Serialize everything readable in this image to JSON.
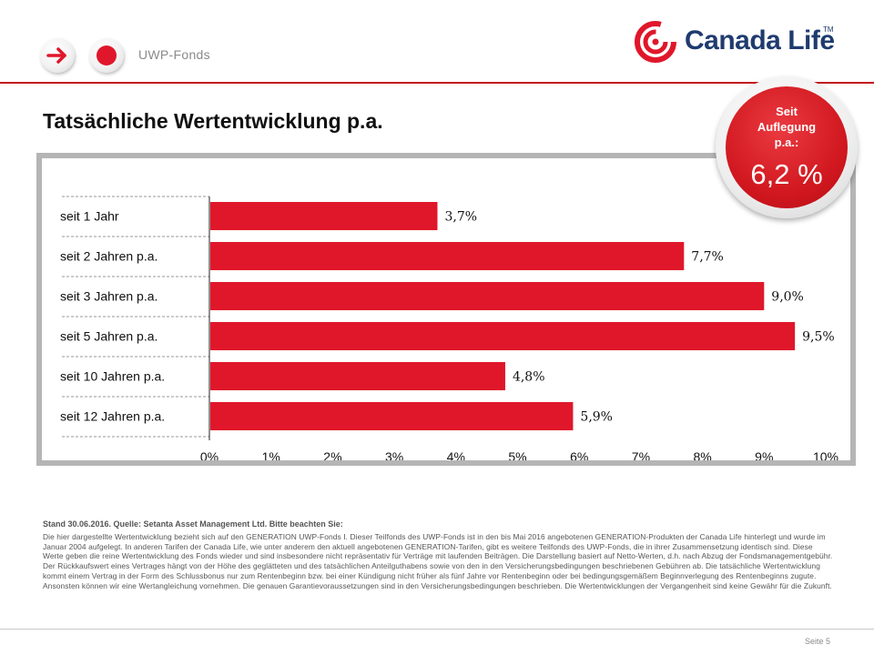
{
  "header": {
    "section_label": "UWP-Fonds",
    "logo_text": "Canada Life",
    "logo_tm": "TM"
  },
  "page_title": "Tatsächliche Wertentwicklung p.a.",
  "badge": {
    "caption": "Seit\nAuflegung\np.a.:",
    "value": "6,2 %"
  },
  "colors": {
    "brand_red": "#e0172a",
    "bar_red": "#e0172a",
    "logo_blue": "#1f3b6f"
  },
  "chart_data": {
    "type": "bar",
    "orientation": "horizontal",
    "categories": [
      "seit 1 Jahr",
      "seit  2 Jahren p.a.",
      "seit  3 Jahren p.a.",
      "seit  5 Jahren p.a.",
      "seit 10 Jahren p.a.",
      "seit 12 Jahren p.a."
    ],
    "values": [
      3.7,
      7.7,
      9.0,
      9.5,
      4.8,
      5.9
    ],
    "value_labels": [
      "3,7%",
      "7,7%",
      "9,0%",
      "9,5%",
      "4,8%",
      "5,9%"
    ],
    "x_ticks": [
      0,
      1,
      2,
      3,
      4,
      5,
      6,
      7,
      8,
      9,
      10
    ],
    "x_tick_labels": [
      "0%",
      "1%",
      "2%",
      "3%",
      "4%",
      "5%",
      "6%",
      "7%",
      "8%",
      "9%",
      "10%"
    ],
    "xlim": [
      0,
      10
    ],
    "title": "",
    "xlabel": "",
    "ylabel": "",
    "grid": false,
    "legend": "none"
  },
  "footnote": {
    "heading": "Stand 30.06.2016. Quelle: Setanta Asset Management Ltd. Bitte beachten Sie:",
    "body": "Die hier dargestellte Wertentwicklung bezieht sich auf den GENERATION UWP-Fonds I. Dieser Teilfonds des UWP-Fonds ist in den bis Mai 2016 angebotenen GENERATION-Produkten der Canada Life hinterlegt und wurde im Januar 2004 aufgelegt. In anderen Tarifen der Canada Life, wie unter anderem den aktuell angebotenen GENERATION-Tarifen, gibt es weitere Teilfonds des UWP-Fonds, die in ihrer Zusammensetzung identisch sind. Diese Werte geben die reine Wertentwicklung des Fonds wieder und sind insbesondere nicht repräsentativ für Verträge mit laufenden Beiträgen. Die Darstellung basiert auf Netto-Werten, d.h. nach Abzug der Fondsmanagementgebühr. Der Rückkaufswert eines Vertrages hängt von der Höhe des geglätteten und des tatsächlichen Anteilguthabens sowie von den in den Versicherungsbedingungen beschriebenen Gebühren ab. Die tatsächliche Wertentwicklung kommt einem Vertrag in der Form des Schlussbonus nur zum Rentenbeginn bzw. bei einer Kündigung nicht früher als fünf Jahre vor Rentenbeginn oder bei bedingungsgemäßem Beginnverlegung des Rentenbeginns zugute. Ansonsten können wir eine Wertangleichung vornehmen. Die genauen Garantievoraussetzungen sind in den Versicherungsbedingungen beschrieben. Die Wertentwicklungen der Vergangenheit sind keine Gewähr für die Zukunft."
  },
  "page_number": "Seite 5"
}
